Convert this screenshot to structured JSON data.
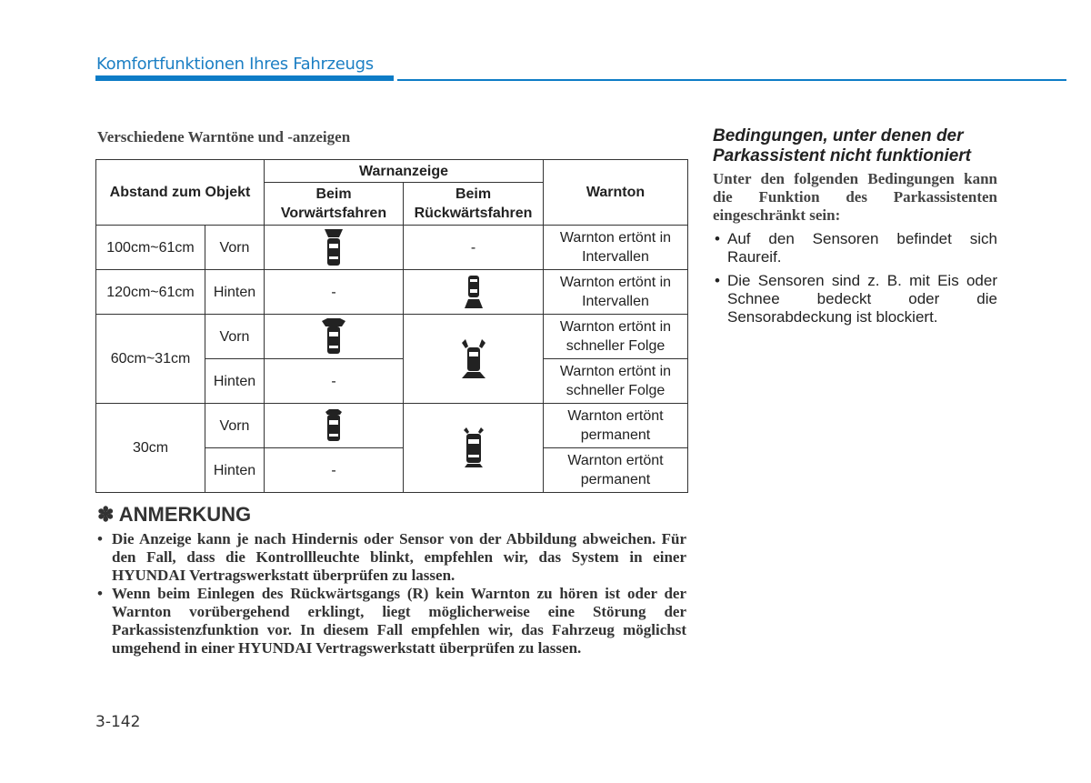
{
  "header": {
    "section_title": "Komfortfunktionen Ihres Fahrzeugs",
    "accent_color": "#0d7cc6"
  },
  "subtitle": "Verschiedene Warntöne und -anzeigen",
  "table": {
    "col_distance": "Abstand zum Objekt",
    "col_indicator": "Warnanzeige",
    "col_forward": "Beim Vorwärtsfahren",
    "col_reverse": "Beim Rückwärtsfahren",
    "col_tone": "Warnton",
    "rows": [
      {
        "distance": "100cm~61cm",
        "position": "Vorn",
        "forward_icon": "car-front-sensor-far-icon",
        "reverse": "-",
        "tone": "Warnton ertönt in Intervallen"
      },
      {
        "distance": "120cm~61cm",
        "position": "Hinten",
        "forward": "-",
        "reverse_icon": "car-rear-sensor-far-icon",
        "tone": "Warnton ertönt in Intervallen"
      },
      {
        "distance": "60cm~31cm",
        "position": "Vorn",
        "forward_icon": "car-front-sensor-mid-icon",
        "reverse_icon": "car-all-sensors-mid-icon",
        "tone": "Warnton ertönt in schneller Folge"
      },
      {
        "position": "Hinten",
        "forward": "-",
        "tone": "Warnton ertönt in schneller Folge"
      },
      {
        "distance": "30cm",
        "position": "Vorn",
        "forward_icon": "car-front-sensor-near-icon",
        "reverse_icon": "car-all-sensors-near-icon",
        "tone": "Warnton ertönt permanent"
      },
      {
        "position": "Hinten",
        "forward": "-",
        "tone": "Warnton ertönt permanent"
      }
    ]
  },
  "note": {
    "title": "✽ ANMERKUNG",
    "items": [
      "Die Anzeige kann je nach Hindernis oder Sensor von der Abbildung abweichen. Für den Fall, dass die Kontrollleuchte blinkt, empfehlen wir, das System in einer HYUNDAI Vertragswerkstatt überprüfen zu lassen.",
      "Wenn beim Einlegen des Rückwärtsgangs (R) kein Warnton zu hören ist oder der Warnton vorübergehend erklingt, liegt möglicherweise eine Störung der Parkassistenzfunktion vor. In diesem Fall empfehlen wir, das Fahrzeug möglichst umgehend in einer HYUNDAI Vertragswerkstatt überprüfen zu lassen."
    ]
  },
  "right": {
    "heading": "Bedingungen, unter denen der Parkassistent nicht funktioniert",
    "intro": "Unter den folgenden Bedingungen kann die Funktion des Parkassistenten eingeschränkt sein:",
    "items": [
      "Auf den Sensoren befindet sich Raureif.",
      "Die Sensoren sind z. B. mit Eis oder Schnee bedeckt oder die Sensorabdeckung ist blockiert."
    ]
  },
  "page_number": "3-142",
  "bullet": "•"
}
